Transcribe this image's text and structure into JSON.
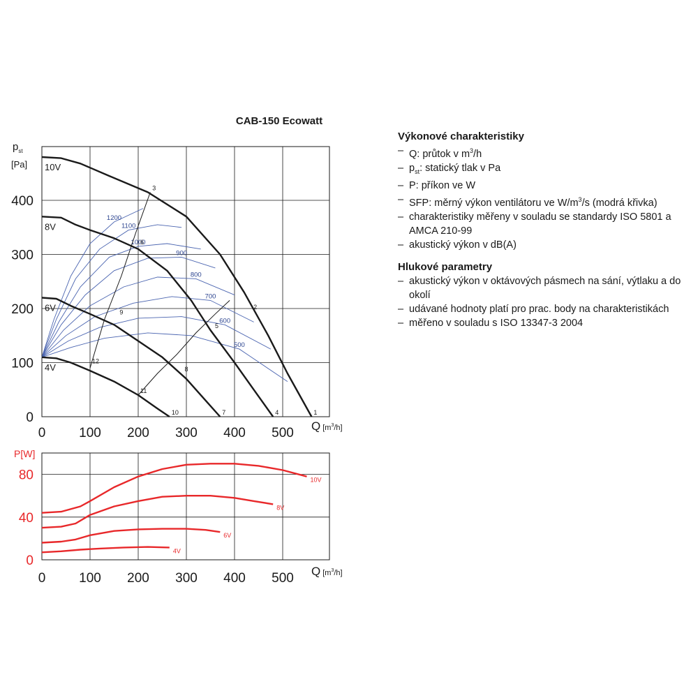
{
  "chart_data": {
    "title": "CAB-150 Ecowatt",
    "pressure": {
      "type": "line",
      "ylabel_main": "p",
      "ylabel_sub": "st",
      "ylabel_unit": "[Pa]",
      "xlabel": "Q",
      "xlabel_unit_pre": "[m",
      "xlabel_unit_sup": "3",
      "xlabel_unit_post": "/h]",
      "xlim": [
        0,
        560
      ],
      "ylim": [
        0,
        480
      ],
      "x_ticks": [
        0,
        100,
        200,
        300,
        400,
        500
      ],
      "y_ticks": [
        0,
        100,
        200,
        300,
        400
      ],
      "series": [
        {
          "name": "10V",
          "x": [
            0,
            40,
            80,
            140,
            220,
            300,
            370,
            420,
            470,
            510,
            560
          ],
          "y": [
            480,
            478,
            468,
            445,
            415,
            370,
            300,
            230,
            150,
            80,
            0
          ]
        },
        {
          "name": "8V",
          "x": [
            0,
            40,
            70,
            100,
            150,
            200,
            260,
            310,
            350,
            400,
            440,
            480
          ],
          "y": [
            370,
            368,
            355,
            345,
            330,
            310,
            270,
            215,
            160,
            100,
            50,
            0
          ]
        },
        {
          "name": "6V",
          "x": [
            0,
            30,
            60,
            100,
            150,
            200,
            250,
            300,
            340,
            370
          ],
          "y": [
            220,
            218,
            205,
            190,
            170,
            140,
            110,
            70,
            30,
            0
          ]
        },
        {
          "name": "4V",
          "x": [
            0,
            30,
            60,
            100,
            150,
            200,
            240,
            265
          ],
          "y": [
            110,
            108,
            100,
            85,
            65,
            40,
            15,
            0
          ]
        }
      ],
      "sfp_curves": [
        {
          "label": "1200",
          "x": [
            0,
            25,
            60,
            100,
            150,
            210
          ],
          "y": [
            110,
            180,
            260,
            320,
            360,
            385
          ]
        },
        {
          "label": "1100",
          "x": [
            0,
            30,
            70,
            120,
            180,
            240,
            290
          ],
          "y": [
            110,
            180,
            255,
            310,
            345,
            355,
            350
          ]
        },
        {
          "label": "1000",
          "x": [
            0,
            35,
            80,
            140,
            200,
            260,
            330
          ],
          "y": [
            110,
            175,
            240,
            295,
            315,
            320,
            310
          ]
        },
        {
          "label": "900",
          "x": [
            0,
            40,
            90,
            150,
            220,
            290,
            360
          ],
          "y": [
            110,
            170,
            225,
            270,
            293,
            295,
            275
          ]
        },
        {
          "label": "800",
          "x": [
            0,
            45,
            100,
            170,
            240,
            320,
            400
          ],
          "y": [
            110,
            160,
            205,
            240,
            258,
            255,
            225
          ]
        },
        {
          "label": "700",
          "x": [
            0,
            50,
            110,
            190,
            270,
            350,
            440
          ],
          "y": [
            110,
            150,
            185,
            210,
            222,
            215,
            175
          ]
        },
        {
          "label": "600",
          "x": [
            0,
            55,
            120,
            200,
            290,
            380,
            475
          ],
          "y": [
            110,
            140,
            165,
            182,
            185,
            170,
            125
          ]
        },
        {
          "label": "500",
          "x": [
            0,
            60,
            130,
            220,
            310,
            410,
            510
          ],
          "y": [
            110,
            128,
            145,
            155,
            150,
            125,
            65
          ]
        }
      ],
      "system_curves": [
        {
          "x": [
            100,
            130,
            165,
            195,
            225
          ],
          "y": [
            90,
            180,
            260,
            340,
            415
          ]
        },
        {
          "x": [
            200,
            240,
            280,
            320,
            360,
            390
          ],
          "y": [
            40,
            80,
            115,
            155,
            190,
            215
          ]
        }
      ],
      "points": [
        {
          "label": "1",
          "x": 560,
          "y": 0
        },
        {
          "label": "2",
          "x": 435,
          "y": 195
        },
        {
          "label": "3",
          "x": 225,
          "y": 415
        },
        {
          "label": "4",
          "x": 480,
          "y": 0
        },
        {
          "label": "5",
          "x": 355,
          "y": 160
        },
        {
          "label": "6",
          "x": 200,
          "y": 315
        },
        {
          "label": "7",
          "x": 370,
          "y": 0
        },
        {
          "label": "8",
          "x": 292,
          "y": 80
        },
        {
          "label": "9",
          "x": 157,
          "y": 185
        },
        {
          "label": "10",
          "x": 265,
          "y": 0
        },
        {
          "label": "11",
          "x": 200,
          "y": 40
        },
        {
          "label": "12",
          "x": 100,
          "y": 95
        }
      ]
    },
    "power": {
      "type": "line",
      "ylabel": "P[W]",
      "xlabel": "Q",
      "xlabel_unit_pre": "[m",
      "xlabel_unit_sup": "3",
      "xlabel_unit_post": "/h]",
      "xlim": [
        0,
        560
      ],
      "ylim": [
        0,
        100
      ],
      "x_ticks": [
        0,
        100,
        200,
        300,
        400,
        500
      ],
      "y_ticks": [
        0,
        40,
        80
      ],
      "series": [
        {
          "name": "10V",
          "x": [
            0,
            40,
            80,
            100,
            150,
            200,
            250,
            300,
            350,
            400,
            450,
            500,
            550
          ],
          "y": [
            44,
            45,
            50,
            55,
            68,
            78,
            85,
            89,
            90,
            90,
            88,
            84,
            78
          ]
        },
        {
          "name": "8V",
          "x": [
            0,
            40,
            70,
            100,
            150,
            200,
            250,
            300,
            350,
            400,
            440,
            480
          ],
          "y": [
            30,
            31,
            34,
            42,
            50,
            55,
            59,
            60,
            60,
            58,
            55,
            52
          ]
        },
        {
          "name": "6V",
          "x": [
            0,
            40,
            70,
            100,
            150,
            200,
            250,
            300,
            340,
            370
          ],
          "y": [
            16,
            17,
            19,
            23,
            27,
            28.5,
            29,
            29,
            28,
            26
          ]
        },
        {
          "name": "4V",
          "x": [
            0,
            40,
            80,
            120,
            170,
            220,
            265
          ],
          "y": [
            7,
            8,
            9.5,
            10.5,
            11.5,
            12,
            11.5
          ]
        }
      ]
    }
  },
  "info": {
    "heading1": "Výkonové charakteristiky",
    "items1": [
      {
        "pre": "Q: průtok v m",
        "sup": "3",
        "post": "/h"
      },
      {
        "pre": "p",
        "sub": "st",
        "post": ": statický tlak v Pa"
      },
      {
        "pre": "P: příkon ve W"
      },
      {
        "pre": "SFP: měrný výkon ventilátoru ve W/m",
        "sup": "3",
        "post": "/s (modrá křivka)"
      },
      {
        "pre": "charakteristiky měřeny v souladu se standardy ISO 5801 a AMCA 210-99"
      },
      {
        "pre": "akustický výkon v dB(A)"
      }
    ],
    "heading2": "Hlukové parametry",
    "items2": [
      {
        "pre": "akustický výkon v oktávových pásmech na sání, výtlaku a do okolí"
      },
      {
        "pre": "udávané hodnoty platí pro prac. body na charakteristikách"
      },
      {
        "pre": "měřeno v souladu s ISO 13347-3 2004"
      }
    ]
  },
  "colors": {
    "fan_curve": "#1a1a1a",
    "sfp_curve": "#4a64b0",
    "sfp_label": "#2d4590",
    "power_curve": "#e8282a",
    "power_axis_text": "#e8282a",
    "grid": "#1a1a1a"
  }
}
